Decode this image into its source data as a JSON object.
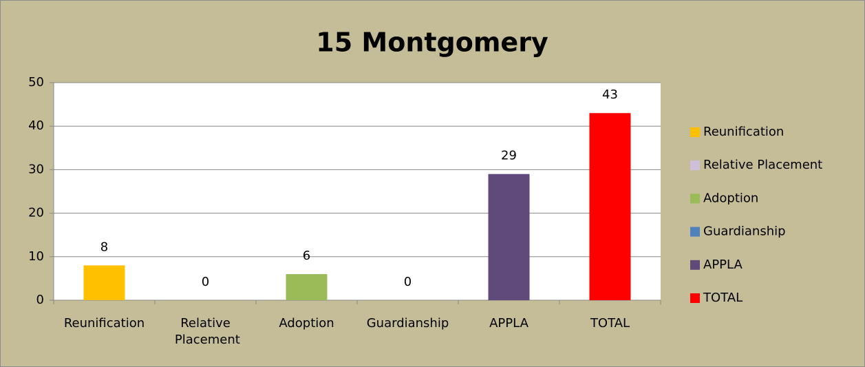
{
  "chart_data": {
    "type": "bar",
    "title": "15 Montgomery",
    "categories": [
      "Reunification",
      "Relative Placement",
      "Adoption",
      "Guardianship",
      "APPLA",
      "TOTAL"
    ],
    "values": [
      8,
      0,
      6,
      0,
      29,
      43
    ],
    "colors": [
      "#ffc000",
      "#ccc0da",
      "#9bbb59",
      "#4f81bd",
      "#604a7b",
      "#ff0000"
    ],
    "ylim": [
      0,
      50
    ],
    "yticks": [
      0,
      10,
      20,
      30,
      40,
      50
    ],
    "grid": true,
    "legend": "right"
  }
}
